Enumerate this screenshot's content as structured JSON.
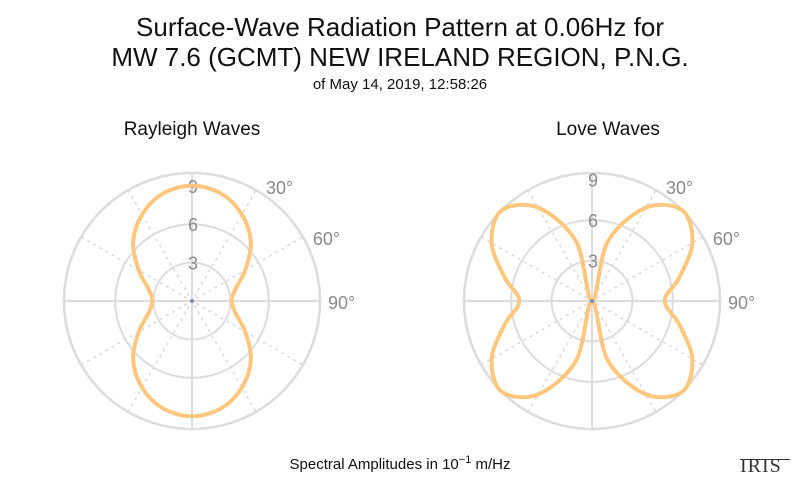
{
  "title_line1": "Surface-Wave Radiation Pattern at 0.06Hz for",
  "title_line2": "MW 7.6 (GCMT) NEW IRELAND REGION, P.N.G.",
  "title_line3": "of May 14, 2019, 12:58:26",
  "footer_prefix": "Spectral Amplitudes in 10",
  "footer_exp": "−1",
  "footer_unit": " m/Hz",
  "logo_text": "IRIS",
  "colors": {
    "pattern": "#fdc77f",
    "grid": "#dcdcdc",
    "tick": "#8a8a8a"
  },
  "chart_data": [
    {
      "type": "polar-line",
      "title": "Rayleigh Waves",
      "r_ticks": [
        "3",
        "6",
        "9"
      ],
      "r_max": 10,
      "angle_labels": [
        "30°",
        "60°",
        "90°"
      ],
      "angle_step_deg": 30,
      "theta_deg": [
        0,
        15,
        30,
        45,
        60,
        75,
        90,
        105,
        120,
        135,
        150,
        165,
        180,
        195,
        210,
        225,
        240,
        255,
        270,
        285,
        300,
        315,
        330,
        345
      ],
      "r": [
        9.0,
        8.7,
        7.8,
        6.5,
        4.8,
        3.5,
        3.1,
        3.5,
        4.8,
        6.5,
        7.8,
        8.7,
        9.0,
        8.7,
        7.8,
        6.5,
        4.8,
        3.5,
        3.1,
        3.5,
        4.8,
        6.5,
        7.8,
        8.7
      ]
    },
    {
      "type": "polar-line",
      "title": "Love Waves",
      "r_ticks": [
        "3",
        "6",
        "9"
      ],
      "r_max": 9.5,
      "angle_labels": [
        "30°",
        "60°",
        "90°"
      ],
      "angle_step_deg": 30,
      "theta_deg": [
        0,
        15,
        30,
        45,
        60,
        75,
        90,
        105,
        120,
        135,
        150,
        165,
        180,
        195,
        210,
        225,
        240,
        255,
        270,
        285,
        300,
        315,
        330,
        345
      ],
      "r": [
        0.0,
        4.6,
        8.0,
        9.5,
        8.6,
        6.7,
        5.4,
        6.7,
        8.6,
        9.5,
        8.0,
        4.6,
        0.0,
        4.6,
        8.0,
        9.5,
        8.6,
        6.7,
        5.4,
        6.7,
        8.6,
        9.5,
        8.0,
        4.6
      ]
    }
  ]
}
